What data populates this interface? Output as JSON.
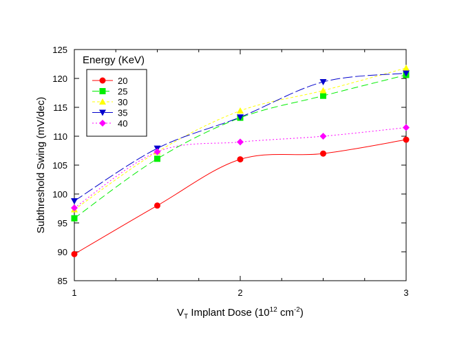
{
  "chart_data": {
    "type": "line",
    "title": "",
    "ylabel": "Subthreshold Swing (mV/dec)",
    "xlabel": {
      "main": "V",
      "sub": "T",
      "mid": " Implant Dose (10",
      "sup1": "12",
      "mid2": " cm",
      "sup2": "-2",
      "end": ")"
    },
    "xlim": [
      1,
      3
    ],
    "ylim": [
      85,
      125
    ],
    "xticks": [
      1,
      2,
      3
    ],
    "xticks_minor": [
      1.25,
      1.5,
      1.75,
      2.25,
      2.5,
      2.75
    ],
    "yticks": [
      85,
      90,
      95,
      100,
      105,
      110,
      115,
      120,
      125
    ],
    "grid": false,
    "legend": {
      "title": "Energy (KeV)",
      "placement": "top-left"
    },
    "x": [
      1,
      1.5,
      2,
      2.5,
      3
    ],
    "series": [
      {
        "name": "20",
        "values": [
          89.6,
          98.0,
          106.0,
          107.0,
          109.4
        ],
        "color": "#ff0000",
        "marker": "circle",
        "dash": ""
      },
      {
        "name": "25",
        "values": [
          95.8,
          106.1,
          113.2,
          117.0,
          120.6
        ],
        "color": "#00ee00",
        "marker": "square",
        "dash": "10,5"
      },
      {
        "name": "30",
        "values": [
          97.3,
          107.3,
          114.4,
          117.9,
          121.8
        ],
        "color": "#ffff00",
        "marker": "triangle-up",
        "dash": "4,3"
      },
      {
        "name": "35",
        "values": [
          98.8,
          107.9,
          113.3,
          119.4,
          120.9
        ],
        "color": "#0000cc",
        "marker": "triangle-down",
        "dash": "14,4"
      },
      {
        "name": "40",
        "values": [
          97.6,
          107.3,
          109.0,
          110.0,
          111.5
        ],
        "color": "#ff00ff",
        "marker": "diamond",
        "dash": "2,3"
      }
    ]
  }
}
